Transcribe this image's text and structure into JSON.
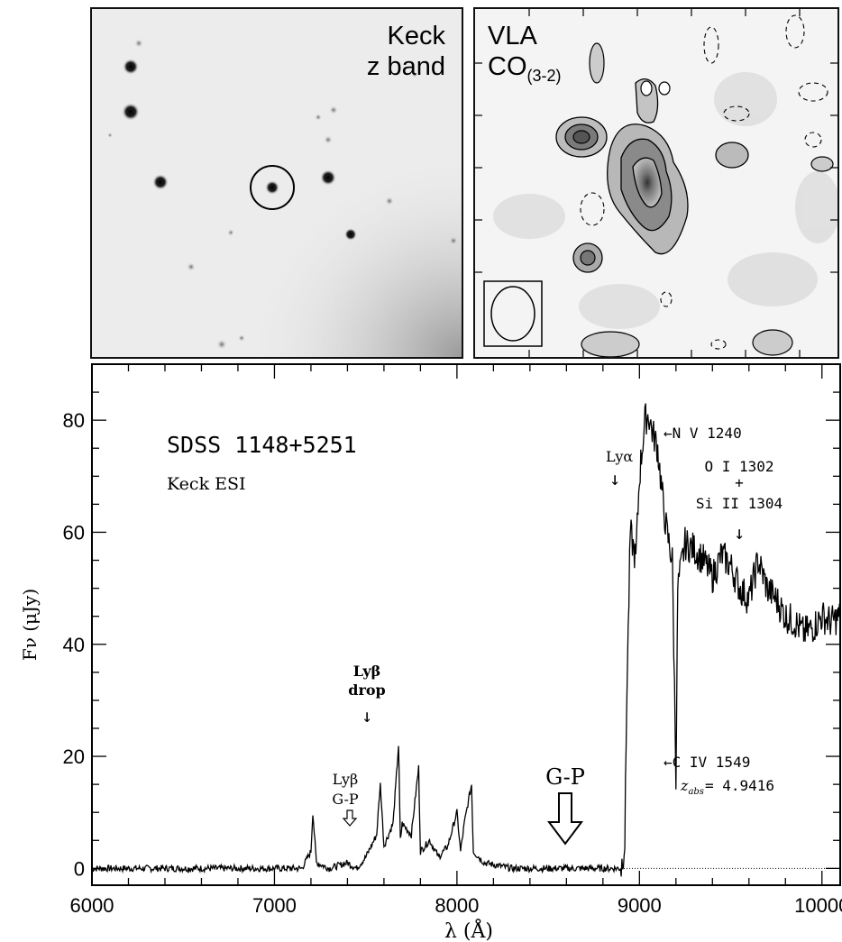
{
  "panels": {
    "keck": {
      "line1": "Keck",
      "line2": "z band"
    },
    "vla": {
      "line1": "VLA",
      "line2_base": "CO",
      "line2_sub": "(3-2)"
    }
  },
  "chart_data": {
    "type": "line",
    "title": "SDSS 1148+5251",
    "subtitle": "Keck ESI",
    "xlabel": "λ (Å)",
    "ylabel": "Fν (μJy)",
    "xlim": [
      6000,
      10100
    ],
    "ylim": [
      -3,
      90
    ],
    "xticks": [
      6000,
      7000,
      8000,
      9000,
      10000
    ],
    "yticks": [
      0,
      20,
      40,
      60,
      80
    ],
    "grid": false,
    "series": [
      {
        "name": "",
        "x": [
          6000,
          6200,
          6400,
          6600,
          6800,
          7000,
          7150,
          7200,
          7210,
          7230,
          7300,
          7400,
          7450,
          7500,
          7530,
          7560,
          7580,
          7600,
          7650,
          7680,
          7690,
          7700,
          7750,
          7790,
          7800,
          7850,
          7900,
          7950,
          8000,
          8020,
          8040,
          8080,
          8090,
          8150,
          8300,
          8500,
          8700,
          8900,
          8920,
          8930,
          8950,
          8980,
          9000,
          9030,
          9050,
          9070,
          9100,
          9130,
          9150,
          9180,
          9200,
          9210,
          9250,
          9300,
          9350,
          9400,
          9450,
          9500,
          9550,
          9600,
          9650,
          9700,
          9750,
          9800,
          9850,
          9900,
          9950,
          10000,
          10050,
          10100
        ],
        "y": [
          0,
          0,
          0,
          0,
          0,
          0,
          0,
          3,
          10,
          1,
          0,
          1,
          0,
          2,
          4,
          6,
          15,
          4,
          8,
          22,
          5,
          8,
          6,
          18,
          3,
          5,
          2,
          4,
          10,
          3,
          8,
          15,
          3,
          1,
          0,
          0,
          0,
          0,
          5,
          30,
          60,
          55,
          70,
          80,
          81,
          78,
          75,
          65,
          60,
          55,
          17,
          50,
          58,
          57,
          55,
          52,
          56,
          54,
          50,
          48,
          55,
          50,
          48,
          45,
          44,
          42,
          43,
          45,
          44,
          45
        ]
      }
    ],
    "annotations": {
      "nv": "←N V 1240",
      "lya": "Lyα",
      "oi": "O I 1302",
      "plus": "+",
      "siii": "Si II 1304",
      "lyb_drop_1": "Lyβ",
      "lyb_drop_2": "drop",
      "civ": "←C IV 1549",
      "zabs": "z",
      "zabs_sub": "abs",
      "zabs_val": "= 4.9416",
      "gp": "G-P",
      "lyb_gp_1": "Lyβ",
      "lyb_gp_2": "G-P"
    }
  }
}
